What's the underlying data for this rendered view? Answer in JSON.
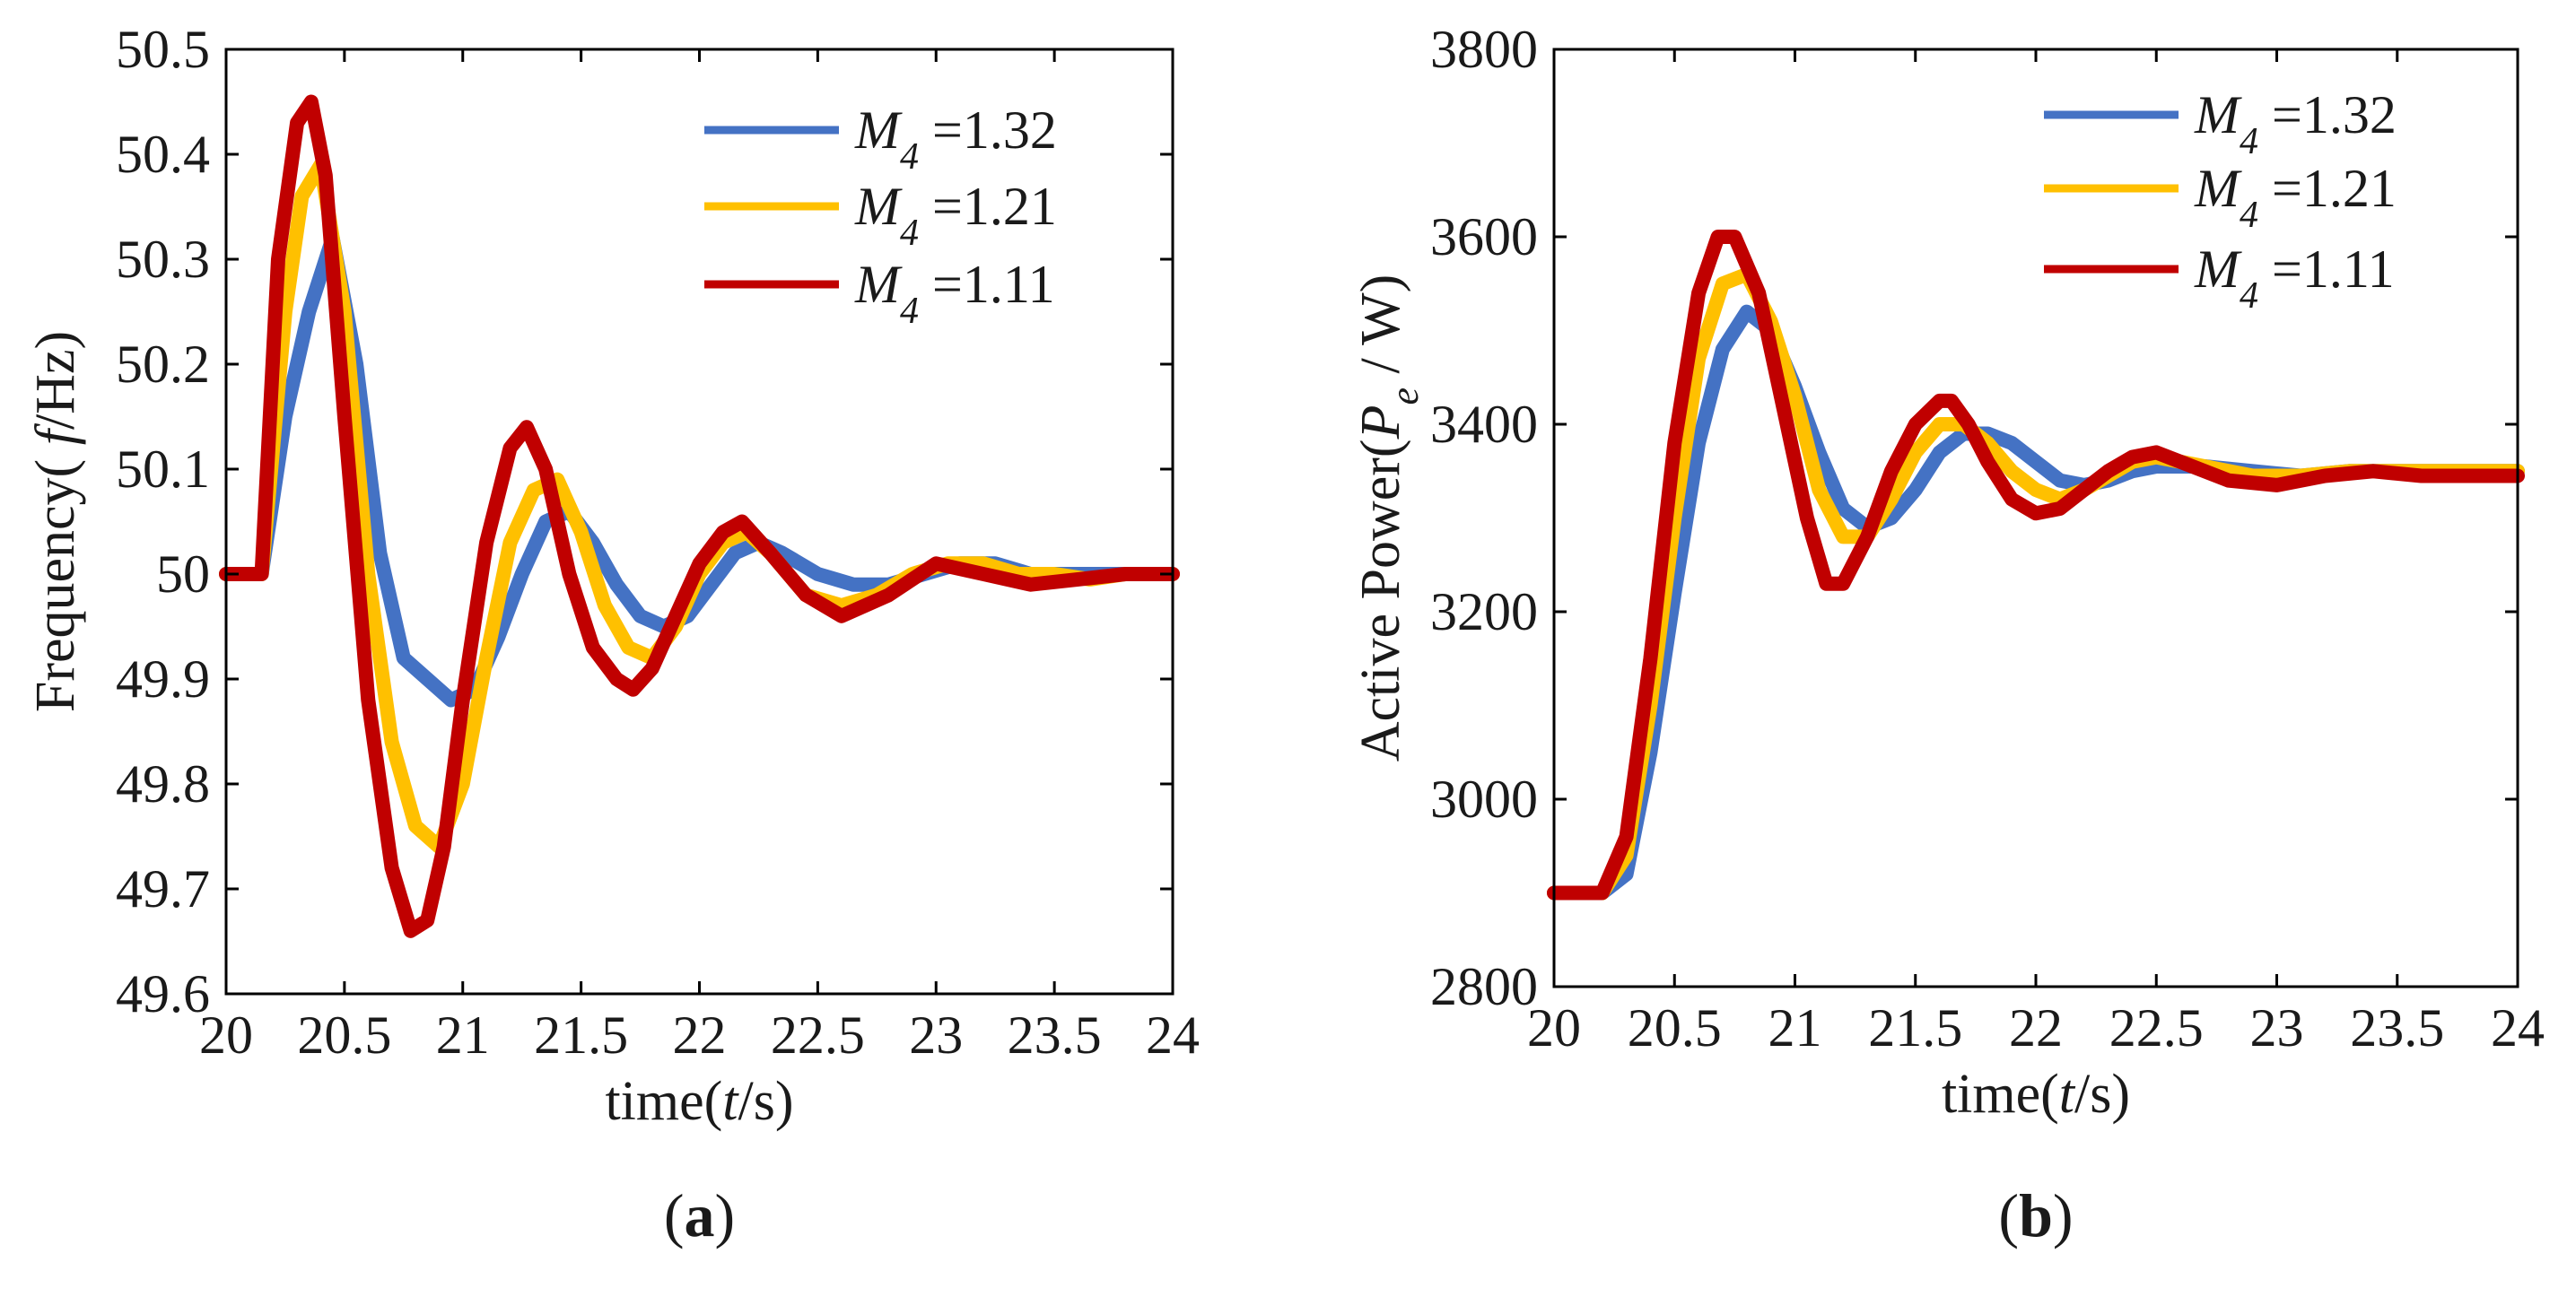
{
  "chart_data": [
    {
      "type": "line",
      "panel_label": "(a)",
      "panel_letter": "a",
      "title": "",
      "xlabel": "time(t/s)",
      "xlabel_parts": {
        "prefix": "time(",
        "var": "t",
        "suffix": "/s)"
      },
      "ylabel": "Frequency( f/Hz)",
      "ylabel_parts": {
        "prefix": "Frequency( ",
        "var": "f",
        "suffix": "/Hz)"
      },
      "xlim": [
        20,
        24
      ],
      "ylim": [
        49.6,
        50.5
      ],
      "x_ticks": [
        20,
        20.5,
        21,
        21.5,
        22,
        22.5,
        23,
        23.5,
        24
      ],
      "x_tick_labels": [
        "20",
        "20.5",
        "21",
        "21.5",
        "22",
        "22.5",
        "23",
        "23.5",
        "24"
      ],
      "y_ticks": [
        49.6,
        49.7,
        49.8,
        49.9,
        50,
        50.1,
        50.2,
        50.3,
        50.4,
        50.5
      ],
      "y_tick_labels": [
        "49.6",
        "49.7",
        "49.8",
        "49.9",
        "50",
        "50.1",
        "50.2",
        "50.3",
        "50.4",
        "50.5"
      ],
      "grid": false,
      "legend_position": "top-right",
      "series": [
        {
          "name": "M4 =1.32",
          "symbol": "M",
          "sub": "4",
          "value_text": " =1.32",
          "color": "#4472C4",
          "x": [
            20,
            20.15,
            20.25,
            20.35,
            20.45,
            20.55,
            20.65,
            20.75,
            20.85,
            20.95,
            21.05,
            21.15,
            21.25,
            21.35,
            21.45,
            21.55,
            21.65,
            21.75,
            21.85,
            21.95,
            22.05,
            22.15,
            22.25,
            22.35,
            22.5,
            22.65,
            22.8,
            22.95,
            23.1,
            23.25,
            23.4,
            23.55,
            23.7,
            23.85,
            24
          ],
          "y": [
            50,
            50,
            50.15,
            50.25,
            50.32,
            50.2,
            50.02,
            49.92,
            49.9,
            49.88,
            49.89,
            49.94,
            50.0,
            50.05,
            50.06,
            50.03,
            49.99,
            49.96,
            49.95,
            49.96,
            49.99,
            50.02,
            50.03,
            50.02,
            50.0,
            49.99,
            49.99,
            50.0,
            50.01,
            50.01,
            50.0,
            50.0,
            50.0,
            50.0,
            50.0
          ]
        },
        {
          "name": "M4 =1.21",
          "symbol": "M",
          "sub": "4",
          "value_text": " =1.21",
          "color": "#FFC000",
          "x": [
            20,
            20.15,
            20.25,
            20.32,
            20.4,
            20.5,
            20.6,
            20.7,
            20.8,
            20.9,
            21.0,
            21.1,
            21.2,
            21.3,
            21.4,
            21.5,
            21.6,
            21.7,
            21.8,
            21.9,
            22.0,
            22.1,
            22.2,
            22.3,
            22.45,
            22.6,
            22.75,
            22.9,
            23.05,
            23.2,
            23.35,
            23.5,
            23.65,
            23.8,
            24
          ],
          "y": [
            50,
            50,
            50.25,
            50.36,
            50.39,
            50.25,
            50.0,
            49.84,
            49.76,
            49.74,
            49.8,
            49.92,
            50.03,
            50.08,
            50.09,
            50.04,
            49.97,
            49.93,
            49.92,
            49.95,
            50.0,
            50.03,
            50.04,
            50.02,
            49.98,
            49.97,
            49.98,
            50.0,
            50.01,
            50.01,
            50.0,
            50.0,
            49.995,
            50.0,
            50.0
          ]
        },
        {
          "name": "M4 =1.11",
          "symbol": "M",
          "sub": "4",
          "value_text": " =1.11",
          "color": "#C00000",
          "x": [
            20,
            20.15,
            20.22,
            20.3,
            20.36,
            20.42,
            20.5,
            20.6,
            20.7,
            20.78,
            20.85,
            20.92,
            21.0,
            21.1,
            21.2,
            21.27,
            21.35,
            21.45,
            21.55,
            21.65,
            21.72,
            21.8,
            21.9,
            22.0,
            22.1,
            22.18,
            22.3,
            22.45,
            22.6,
            22.8,
            23.0,
            23.2,
            23.4,
            23.6,
            23.8,
            24
          ],
          "y": [
            50,
            50,
            50.3,
            50.43,
            50.45,
            50.38,
            50.15,
            49.88,
            49.72,
            49.66,
            49.67,
            49.74,
            49.88,
            50.03,
            50.12,
            50.14,
            50.1,
            50.0,
            49.93,
            49.9,
            49.89,
            49.91,
            49.96,
            50.01,
            50.04,
            50.05,
            50.02,
            49.98,
            49.96,
            49.98,
            50.01,
            50.0,
            49.99,
            49.995,
            50.0,
            50.0
          ]
        }
      ]
    },
    {
      "type": "line",
      "panel_label": "(b)",
      "panel_letter": "b",
      "title": "",
      "xlabel": "time(t/s)",
      "xlabel_parts": {
        "prefix": "time(",
        "var": "t",
        "suffix": "/s)"
      },
      "ylabel": "Active Power(Pe / W)",
      "ylabel_parts": {
        "prefix": "Active Power(",
        "var": "P",
        "sub": "e",
        "suffix": " / W)"
      },
      "xlim": [
        20,
        24
      ],
      "ylim": [
        2800,
        3800
      ],
      "x_ticks": [
        20,
        20.5,
        21,
        21.5,
        22,
        22.5,
        23,
        23.5,
        24
      ],
      "x_tick_labels": [
        "20",
        "20.5",
        "21",
        "21.5",
        "22",
        "22.5",
        "23",
        "23.5",
        "24"
      ],
      "y_ticks": [
        2800,
        3000,
        3200,
        3400,
        3600,
        3800
      ],
      "y_tick_labels": [
        "2800",
        "3000",
        "3200",
        "3400",
        "3600",
        "3800"
      ],
      "grid": false,
      "legend_position": "top-right",
      "series": [
        {
          "name": "M4 =1.32",
          "symbol": "M",
          "sub": "4",
          "value_text": " =1.32",
          "color": "#4472C4",
          "x": [
            20,
            20.2,
            20.3,
            20.4,
            20.5,
            20.6,
            20.7,
            20.8,
            20.9,
            21.0,
            21.1,
            21.2,
            21.3,
            21.4,
            21.5,
            21.6,
            21.7,
            21.8,
            21.9,
            22.0,
            22.1,
            22.2,
            22.3,
            22.4,
            22.5,
            22.7,
            22.9,
            23.1,
            23.3,
            23.5,
            23.7,
            24
          ],
          "y": [
            2900,
            2900,
            2920,
            3050,
            3220,
            3380,
            3480,
            3520,
            3500,
            3440,
            3370,
            3310,
            3290,
            3300,
            3330,
            3370,
            3390,
            3390,
            3380,
            3360,
            3340,
            3335,
            3340,
            3350,
            3355,
            3355,
            3350,
            3345,
            3350,
            3350,
            3350,
            3350
          ]
        },
        {
          "name": "M4 =1.21",
          "symbol": "M",
          "sub": "4",
          "value_text": " =1.21",
          "color": "#FFC000",
          "x": [
            20,
            20.2,
            20.3,
            20.4,
            20.5,
            20.6,
            20.7,
            20.8,
            20.9,
            21.0,
            21.1,
            21.2,
            21.3,
            21.4,
            21.5,
            21.6,
            21.7,
            21.8,
            21.9,
            22.0,
            22.1,
            22.2,
            22.3,
            22.4,
            22.5,
            22.7,
            22.9,
            23.1,
            23.3,
            23.5,
            23.7,
            24
          ],
          "y": [
            2900,
            2900,
            2940,
            3100,
            3300,
            3470,
            3550,
            3560,
            3510,
            3430,
            3330,
            3280,
            3280,
            3320,
            3370,
            3400,
            3400,
            3380,
            3350,
            3330,
            3320,
            3330,
            3345,
            3360,
            3365,
            3355,
            3345,
            3345,
            3350,
            3350,
            3350,
            3350
          ]
        },
        {
          "name": "M4 =1.11",
          "symbol": "M",
          "sub": "4",
          "value_text": " =1.11",
          "color": "#C00000",
          "x": [
            20,
            20.2,
            20.3,
            20.4,
            20.5,
            20.6,
            20.68,
            20.75,
            20.85,
            20.95,
            21.05,
            21.13,
            21.2,
            21.3,
            21.4,
            21.5,
            21.6,
            21.65,
            21.72,
            21.8,
            21.9,
            22.0,
            22.1,
            22.2,
            22.3,
            22.4,
            22.5,
            22.6,
            22.8,
            23.0,
            23.2,
            23.4,
            23.6,
            23.8,
            24
          ],
          "y": [
            2900,
            2900,
            2960,
            3150,
            3380,
            3540,
            3600,
            3600,
            3540,
            3420,
            3300,
            3230,
            3230,
            3280,
            3350,
            3400,
            3425,
            3425,
            3400,
            3360,
            3320,
            3305,
            3310,
            3330,
            3350,
            3365,
            3370,
            3360,
            3340,
            3335,
            3345,
            3350,
            3345,
            3345,
            3345
          ]
        }
      ]
    }
  ]
}
